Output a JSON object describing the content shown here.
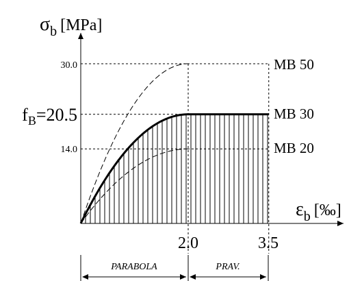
{
  "diagram": {
    "y_axis": {
      "symbol": "σ",
      "subscript": "b",
      "unit": "[MPa]"
    },
    "x_axis": {
      "symbol": "ε",
      "subscript": "b",
      "unit": "[‰]"
    },
    "y_ticks": [
      {
        "label": "30.0",
        "value": 30.0
      },
      {
        "label": "f",
        "subscript": "B",
        "suffix": "=20.5",
        "value": 20.5
      },
      {
        "label": "14.0",
        "value": 14.0
      }
    ],
    "x_ticks": [
      {
        "label": "2.0",
        "value": 2.0
      },
      {
        "label": "3.5",
        "value": 3.5
      }
    ],
    "curves": [
      {
        "name": "MB 50",
        "peak": 30.0,
        "style": "dashed"
      },
      {
        "name": "MB 30",
        "peak": 20.5,
        "style": "solid"
      },
      {
        "name": "MB 20",
        "peak": 14.0,
        "style": "dashed"
      }
    ],
    "zones": [
      {
        "label": "PARABOLA",
        "from": 0.0,
        "to": 2.0
      },
      {
        "label": "PRAV.",
        "from": 2.0,
        "to": 3.5
      }
    ]
  }
}
